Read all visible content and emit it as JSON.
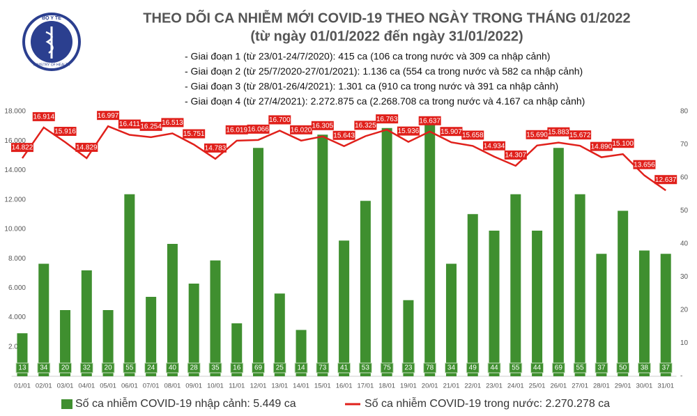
{
  "logo_text": [
    "BỘ Y TẾ",
    "MINISTRY OF HEALTH"
  ],
  "chart_data": {
    "type": "bar-line",
    "title": "THEO DÕI CA NHIỄM MỚI COVID-19 THEO NGÀY TRONG THÁNG 01/2022",
    "subtitle": "(từ ngày 01/01/2022 đến ngày 31/01/2022)",
    "notes": [
      "- Giai đoạn 1 (từ 23/01-24/7/2020): 415 ca (106 ca trong nước và 309 ca nhập cảnh)",
      "- Giai đoạn 2 (từ 25/7/2020-27/01/2021): 1.136 ca (554 ca trong nước và 582 ca nhập cảnh)",
      "- Giai đoạn 3 (từ 28/01-26/4/2021): 1.301 ca (910 ca trong nước và 391 ca nhập cảnh)",
      "- Giai đoạn 4 (từ 27/4/2021): 2.272.875 ca (2.268.708 ca trong nước và 4.167 ca nhập cảnh)"
    ],
    "categories": [
      "01/01",
      "02/01",
      "03/01",
      "04/01",
      "05/01",
      "06/01",
      "07/01",
      "08/01",
      "09/01",
      "10/01",
      "11/01",
      "12/01",
      "13/01",
      "14/01",
      "15/01",
      "16/01",
      "17/01",
      "18/01",
      "19/01",
      "20/01",
      "21/01",
      "22/01",
      "23/01",
      "24/01",
      "25/01",
      "26/01",
      "27/01",
      "28/01",
      "29/01",
      "30/01",
      "31/01"
    ],
    "series": [
      {
        "name": "Số ca nhiễm COVID-19 nhập cảnh: 5.449 ca",
        "type": "bar",
        "axis": "y2",
        "color": "#3f8f2f",
        "values": [
          13,
          34,
          20,
          32,
          20,
          55,
          24,
          40,
          28,
          35,
          16,
          69,
          25,
          14,
          73,
          41,
          53,
          75,
          23,
          78,
          34,
          49,
          44,
          55,
          44,
          69,
          55,
          37,
          50,
          38,
          37
        ]
      },
      {
        "name": "Số ca nhiễm COVID-19 trong nước: 2.270.278 ca",
        "type": "line",
        "axis": "y",
        "color": "#e0201b",
        "values": [
          14822,
          16914,
          15916,
          14829,
          16997,
          16411,
          16254,
          16513,
          15751,
          14783,
          16019,
          16066,
          16700,
          16020,
          16305,
          15643,
          16325,
          16763,
          15936,
          16637,
          15907,
          15658,
          14934,
          14307,
          15690,
          15883,
          15672,
          14890,
          15100,
          13656,
          12637
        ],
        "value_labels": [
          "14.822",
          "16.914",
          "15.916",
          "14.829",
          "16.997",
          "16.411",
          "16.254",
          "16.513",
          "15.751",
          "14.783",
          "16.019",
          "16.066",
          "16.700",
          "16.020",
          "16.305",
          "15.643",
          "16.325",
          "16.763",
          "15.936",
          "16.637",
          "15.907",
          "15.658",
          "14.934",
          "14.307",
          "15.690",
          "15.883",
          "15.672",
          "14.890",
          "15.100",
          "13.656",
          "12.637"
        ]
      }
    ],
    "ylim": [
      0,
      18000
    ],
    "yticks": [
      {
        "value": 0,
        "label": "-"
      },
      {
        "value": 2000,
        "label": "2.000"
      },
      {
        "value": 4000,
        "label": "4.000"
      },
      {
        "value": 6000,
        "label": "6.000"
      },
      {
        "value": 8000,
        "label": "8.000"
      },
      {
        "value": 10000,
        "label": "10.000"
      },
      {
        "value": 12000,
        "label": "12.000"
      },
      {
        "value": 14000,
        "label": "14.000"
      },
      {
        "value": 16000,
        "label": "16.000"
      },
      {
        "value": 18000,
        "label": "18.000"
      }
    ],
    "y2lim": [
      0,
      80
    ],
    "y2ticks": [
      {
        "value": 0,
        "label": "-"
      },
      10,
      20,
      30,
      40,
      50,
      60,
      70,
      80
    ],
    "legend": "bottom"
  }
}
